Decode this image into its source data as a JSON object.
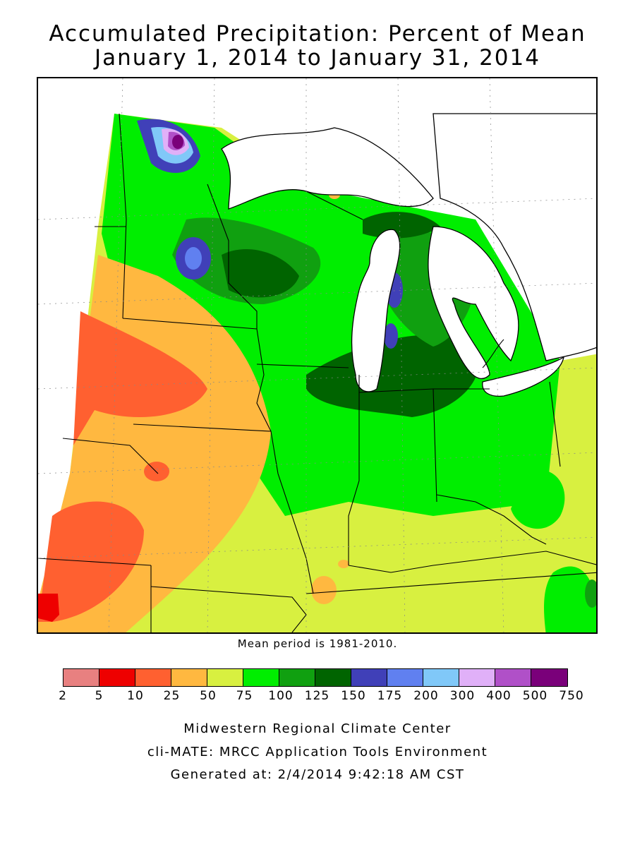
{
  "title": {
    "line1": "Accumulated Precipitation: Percent of Mean",
    "line2": "January 1, 2014 to January 31, 2014"
  },
  "map": {
    "region": "Midwest United States",
    "note": "Mean period is 1981-2010."
  },
  "legend": {
    "ticks": [
      "2",
      "5",
      "10",
      "25",
      "50",
      "75",
      "100",
      "125",
      "150",
      "175",
      "200",
      "300",
      "400",
      "500",
      "750"
    ],
    "colors": [
      "#e88080",
      "#ee0000",
      "#ff6030",
      "#ffb840",
      "#d8f040",
      "#00ee00",
      "#10a010",
      "#006400",
      "#4040b8",
      "#6080f0",
      "#80c8f8",
      "#e0b0f8",
      "#b050c8",
      "#7a007a"
    ]
  },
  "credits": {
    "line1": "Midwestern Regional Climate Center",
    "line2": "cli-MATE: MRCC Application Tools Environment",
    "line3": "Generated at: 2/4/2014 9:42:18 AM CST"
  }
}
